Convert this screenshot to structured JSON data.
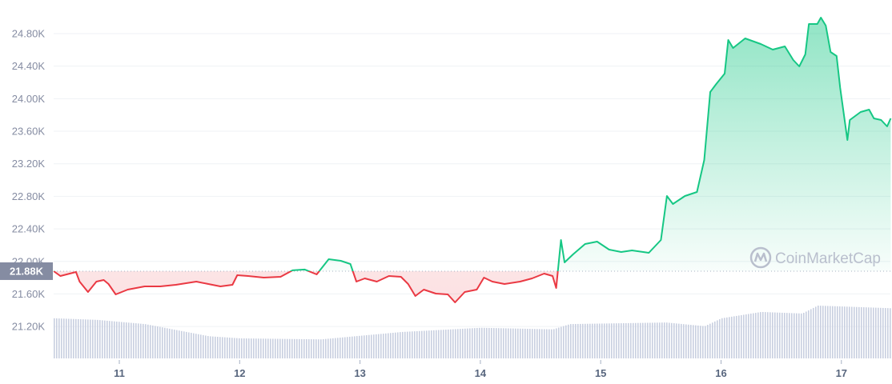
{
  "chart_data": {
    "type": "line",
    "title": "",
    "xlabel": "",
    "ylabel": "",
    "y_ticks": [
      "21.20K",
      "21.60K",
      "22.00K",
      "22.40K",
      "22.80K",
      "23.20K",
      "23.60K",
      "24.00K",
      "24.40K",
      "24.80K"
    ],
    "y_tick_values": [
      21200,
      21600,
      22000,
      22400,
      22800,
      23200,
      23600,
      24000,
      24400,
      24800
    ],
    "x_ticks": [
      "11",
      "12",
      "13",
      "14",
      "15",
      "16",
      "17"
    ],
    "x_tick_values": [
      11,
      12,
      13,
      14,
      15,
      16,
      17
    ],
    "xlim": [
      10.455,
      17.41
    ],
    "ylim": [
      20700,
      25000
    ],
    "grid": "horizontal",
    "baseline": {
      "value": 21880,
      "label": "21.88K"
    },
    "colors": {
      "up": "#16c784",
      "down": "#ea3943",
      "volume": "#c8cfe0",
      "baseline_tag": "#858ca2"
    },
    "series": [
      {
        "x": [
          10.455,
          10.51,
          10.64,
          10.67,
          10.74,
          10.81,
          10.87,
          10.91,
          10.97,
          11.07,
          11.21,
          11.34,
          11.47,
          11.64,
          11.74,
          11.84,
          11.94,
          11.98,
          12.07,
          12.2,
          12.34,
          12.44,
          12.54,
          12.64,
          12.74,
          12.84,
          12.92,
          12.97,
          13.04,
          13.14,
          13.24,
          13.34,
          13.4,
          13.46,
          13.53,
          13.63,
          13.73,
          13.79,
          13.87,
          13.97,
          14.03,
          14.1,
          14.2,
          14.33,
          14.43,
          14.53,
          14.6,
          14.63,
          14.67,
          14.7,
          14.77,
          14.87,
          14.97,
          15.07,
          15.17,
          15.26,
          15.4,
          15.5,
          15.55,
          15.6,
          15.7,
          15.8,
          15.86,
          15.91,
          15.96,
          16.03,
          16.06,
          16.1,
          16.2,
          16.33,
          16.43,
          16.53,
          16.6,
          16.65,
          16.7,
          16.73,
          16.8,
          16.83,
          16.87,
          16.91,
          16.96,
          16.99,
          17.05,
          17.07,
          17.16,
          17.23,
          17.27,
          17.33,
          17.38,
          17.41
        ],
        "values": [
          21880,
          21821,
          21870,
          21752,
          21624,
          21752,
          21771,
          21722,
          21594,
          21653,
          21693,
          21693,
          21712,
          21752,
          21722,
          21693,
          21712,
          21830,
          21821,
          21801,
          21811,
          21890,
          21900,
          21840,
          22027,
          22007,
          21968,
          21752,
          21791,
          21752,
          21821,
          21811,
          21722,
          21575,
          21653,
          21604,
          21594,
          21496,
          21624,
          21653,
          21801,
          21752,
          21722,
          21752,
          21791,
          21850,
          21821,
          21673,
          22263,
          21988,
          22086,
          22214,
          22243,
          22145,
          22116,
          22135,
          22106,
          22263,
          22804,
          22706,
          22804,
          22853,
          23246,
          24082,
          24181,
          24308,
          24721,
          24623,
          24741,
          24672,
          24603,
          24643,
          24476,
          24397,
          24544,
          24918,
          24918,
          24997,
          24898,
          24574,
          24525,
          24131,
          23492,
          23738,
          23836,
          23866,
          23758,
          23738,
          23659,
          23758
        ]
      }
    ],
    "volume_relative": {
      "x": [
        10.455,
        10.81,
        11.21,
        11.74,
        12.0,
        12.67,
        13.34,
        14.0,
        14.6,
        14.74,
        15.54,
        15.86,
        16.0,
        16.33,
        16.67,
        16.8,
        17.41
      ],
      "values": [
        0.76,
        0.73,
        0.65,
        0.42,
        0.38,
        0.36,
        0.5,
        0.58,
        0.55,
        0.65,
        0.68,
        0.61,
        0.76,
        0.88,
        0.85,
        1.0,
        0.95
      ]
    }
  },
  "watermark": {
    "text": "CoinMarketCap"
  }
}
